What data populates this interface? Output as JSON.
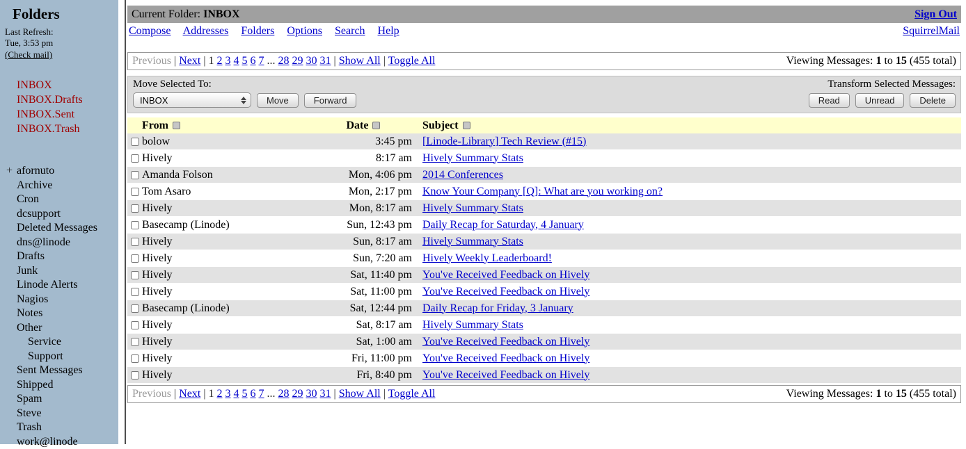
{
  "colors": {
    "sidebar_bg": "#a3bacd",
    "topbar_bg": "#a0a0a0",
    "link_blue": "#0000cc",
    "folder_red": "#a00000",
    "table_header_bg": "#ffffcc",
    "row_alt_gray": "#e2e2e2",
    "toolbar_bg": "#dcdcdc"
  },
  "sidebar": {
    "title": "Folders",
    "last_refresh_label": "Last Refresh:",
    "last_refresh_time": "Tue, 3:53 pm",
    "check_mail": "(Check mail)",
    "plus": "+",
    "special_folders": [
      "INBOX",
      "INBOX.Drafts",
      "INBOX.Sent",
      "INBOX.Trash"
    ],
    "folders": [
      "afornuto",
      "Archive",
      "Cron",
      "dcsupport",
      "Deleted Messages",
      "dns@linode",
      "Drafts",
      "Junk",
      "Linode Alerts",
      "Nagios",
      "Notes",
      "Other",
      "Service",
      "Support",
      "Sent Messages",
      "Shipped",
      "Spam",
      "Steve",
      "Trash",
      "work@linode"
    ]
  },
  "header": {
    "current_folder_label": "Current Folder:",
    "current_folder": "INBOX",
    "sign_out": "Sign Out"
  },
  "menu": {
    "items": [
      "Compose",
      "Addresses",
      "Folders",
      "Options",
      "Search",
      "Help"
    ],
    "brand": "SquirrelMail"
  },
  "pagination": {
    "previous": "Previous",
    "next": "Next",
    "separator": "|",
    "current_page": "1",
    "pages_before": [
      "2",
      "3",
      "4",
      "5",
      "6",
      "7"
    ],
    "ellipsis": "...",
    "pages_after": [
      "28",
      "29",
      "30",
      "31"
    ],
    "show_all": "Show All",
    "toggle_all": "Toggle All",
    "viewing": {
      "label": "Viewing Messages:",
      "from": "1",
      "connector": "to",
      "to": "15",
      "total": "(455 total)"
    }
  },
  "toolbar": {
    "move_selected_label": "Move Selected To:",
    "transform_label": "Transform Selected Messages:",
    "select_value": "INBOX",
    "move_label": "Move",
    "forward_label": "Forward",
    "read_label": "Read",
    "unread_label": "Unread",
    "delete_label": "Delete"
  },
  "table": {
    "headers": {
      "from": "From",
      "date": "Date",
      "subject": "Subject"
    },
    "rows": [
      {
        "from": "bolow",
        "date": "3:45 pm",
        "subject": "[Linode-Library] Tech Review (#15)"
      },
      {
        "from": "Hively",
        "date": "8:17 am",
        "subject": "Hively Summary Stats"
      },
      {
        "from": "Amanda Folson",
        "date": "Mon, 4:06 pm",
        "subject": "2014 Conferences"
      },
      {
        "from": "Tom Asaro",
        "date": "Mon, 2:17 pm",
        "subject": "Know Your Company [Q]: What are you working on?"
      },
      {
        "from": "Hively",
        "date": "Mon, 8:17 am",
        "subject": "Hively Summary Stats"
      },
      {
        "from": "Basecamp (Linode)",
        "date": "Sun, 12:43 pm",
        "subject": "Daily Recap for Saturday, 4 January"
      },
      {
        "from": "Hively",
        "date": "Sun, 8:17 am",
        "subject": "Hively Summary Stats"
      },
      {
        "from": "Hively",
        "date": "Sun, 7:20 am",
        "subject": "Hively Weekly Leaderboard!"
      },
      {
        "from": "Hively",
        "date": "Sat, 11:40 pm",
        "subject": "You've Received Feedback on Hively"
      },
      {
        "from": "Hively",
        "date": "Sat, 11:00 pm",
        "subject": "You've Received Feedback on Hively"
      },
      {
        "from": "Basecamp (Linode)",
        "date": "Sat, 12:44 pm",
        "subject": "Daily Recap for Friday, 3 January"
      },
      {
        "from": "Hively",
        "date": "Sat, 8:17 am",
        "subject": "Hively Summary Stats"
      },
      {
        "from": "Hively",
        "date": "Sat, 1:00 am",
        "subject": "You've Received Feedback on Hively"
      },
      {
        "from": "Hively",
        "date": "Fri, 11:00 pm",
        "subject": "You've Received Feedback on Hively"
      },
      {
        "from": "Hively",
        "date": "Fri, 8:40 pm",
        "subject": "You've Received Feedback on Hively"
      }
    ]
  }
}
